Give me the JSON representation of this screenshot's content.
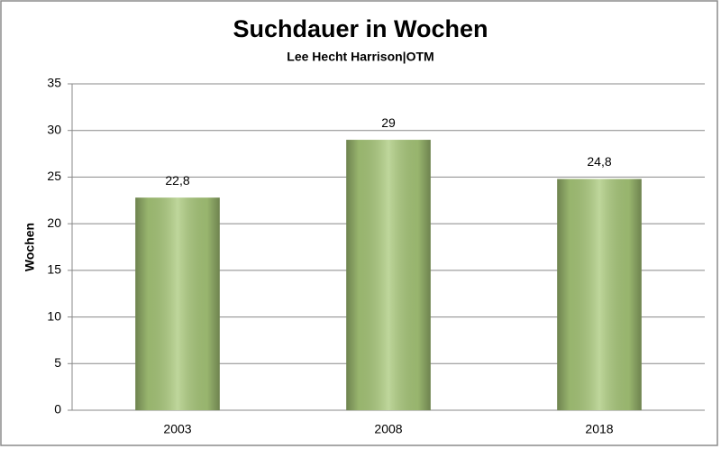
{
  "chart_data": {
    "type": "bar",
    "title": "Suchdauer in Wochen",
    "subtitle": "Lee Hecht Harrison|OTM",
    "y_label": "Wochen",
    "categories": [
      "2003",
      "2008",
      "2018"
    ],
    "values": [
      22.8,
      29,
      24.8
    ],
    "value_labels": [
      "22,8",
      "29",
      "24,8"
    ],
    "color": "#a9c97a",
    "ylim": [
      0,
      35
    ],
    "yticks": [
      0,
      5,
      10,
      15,
      20,
      25,
      30,
      35
    ],
    "grid": true
  }
}
